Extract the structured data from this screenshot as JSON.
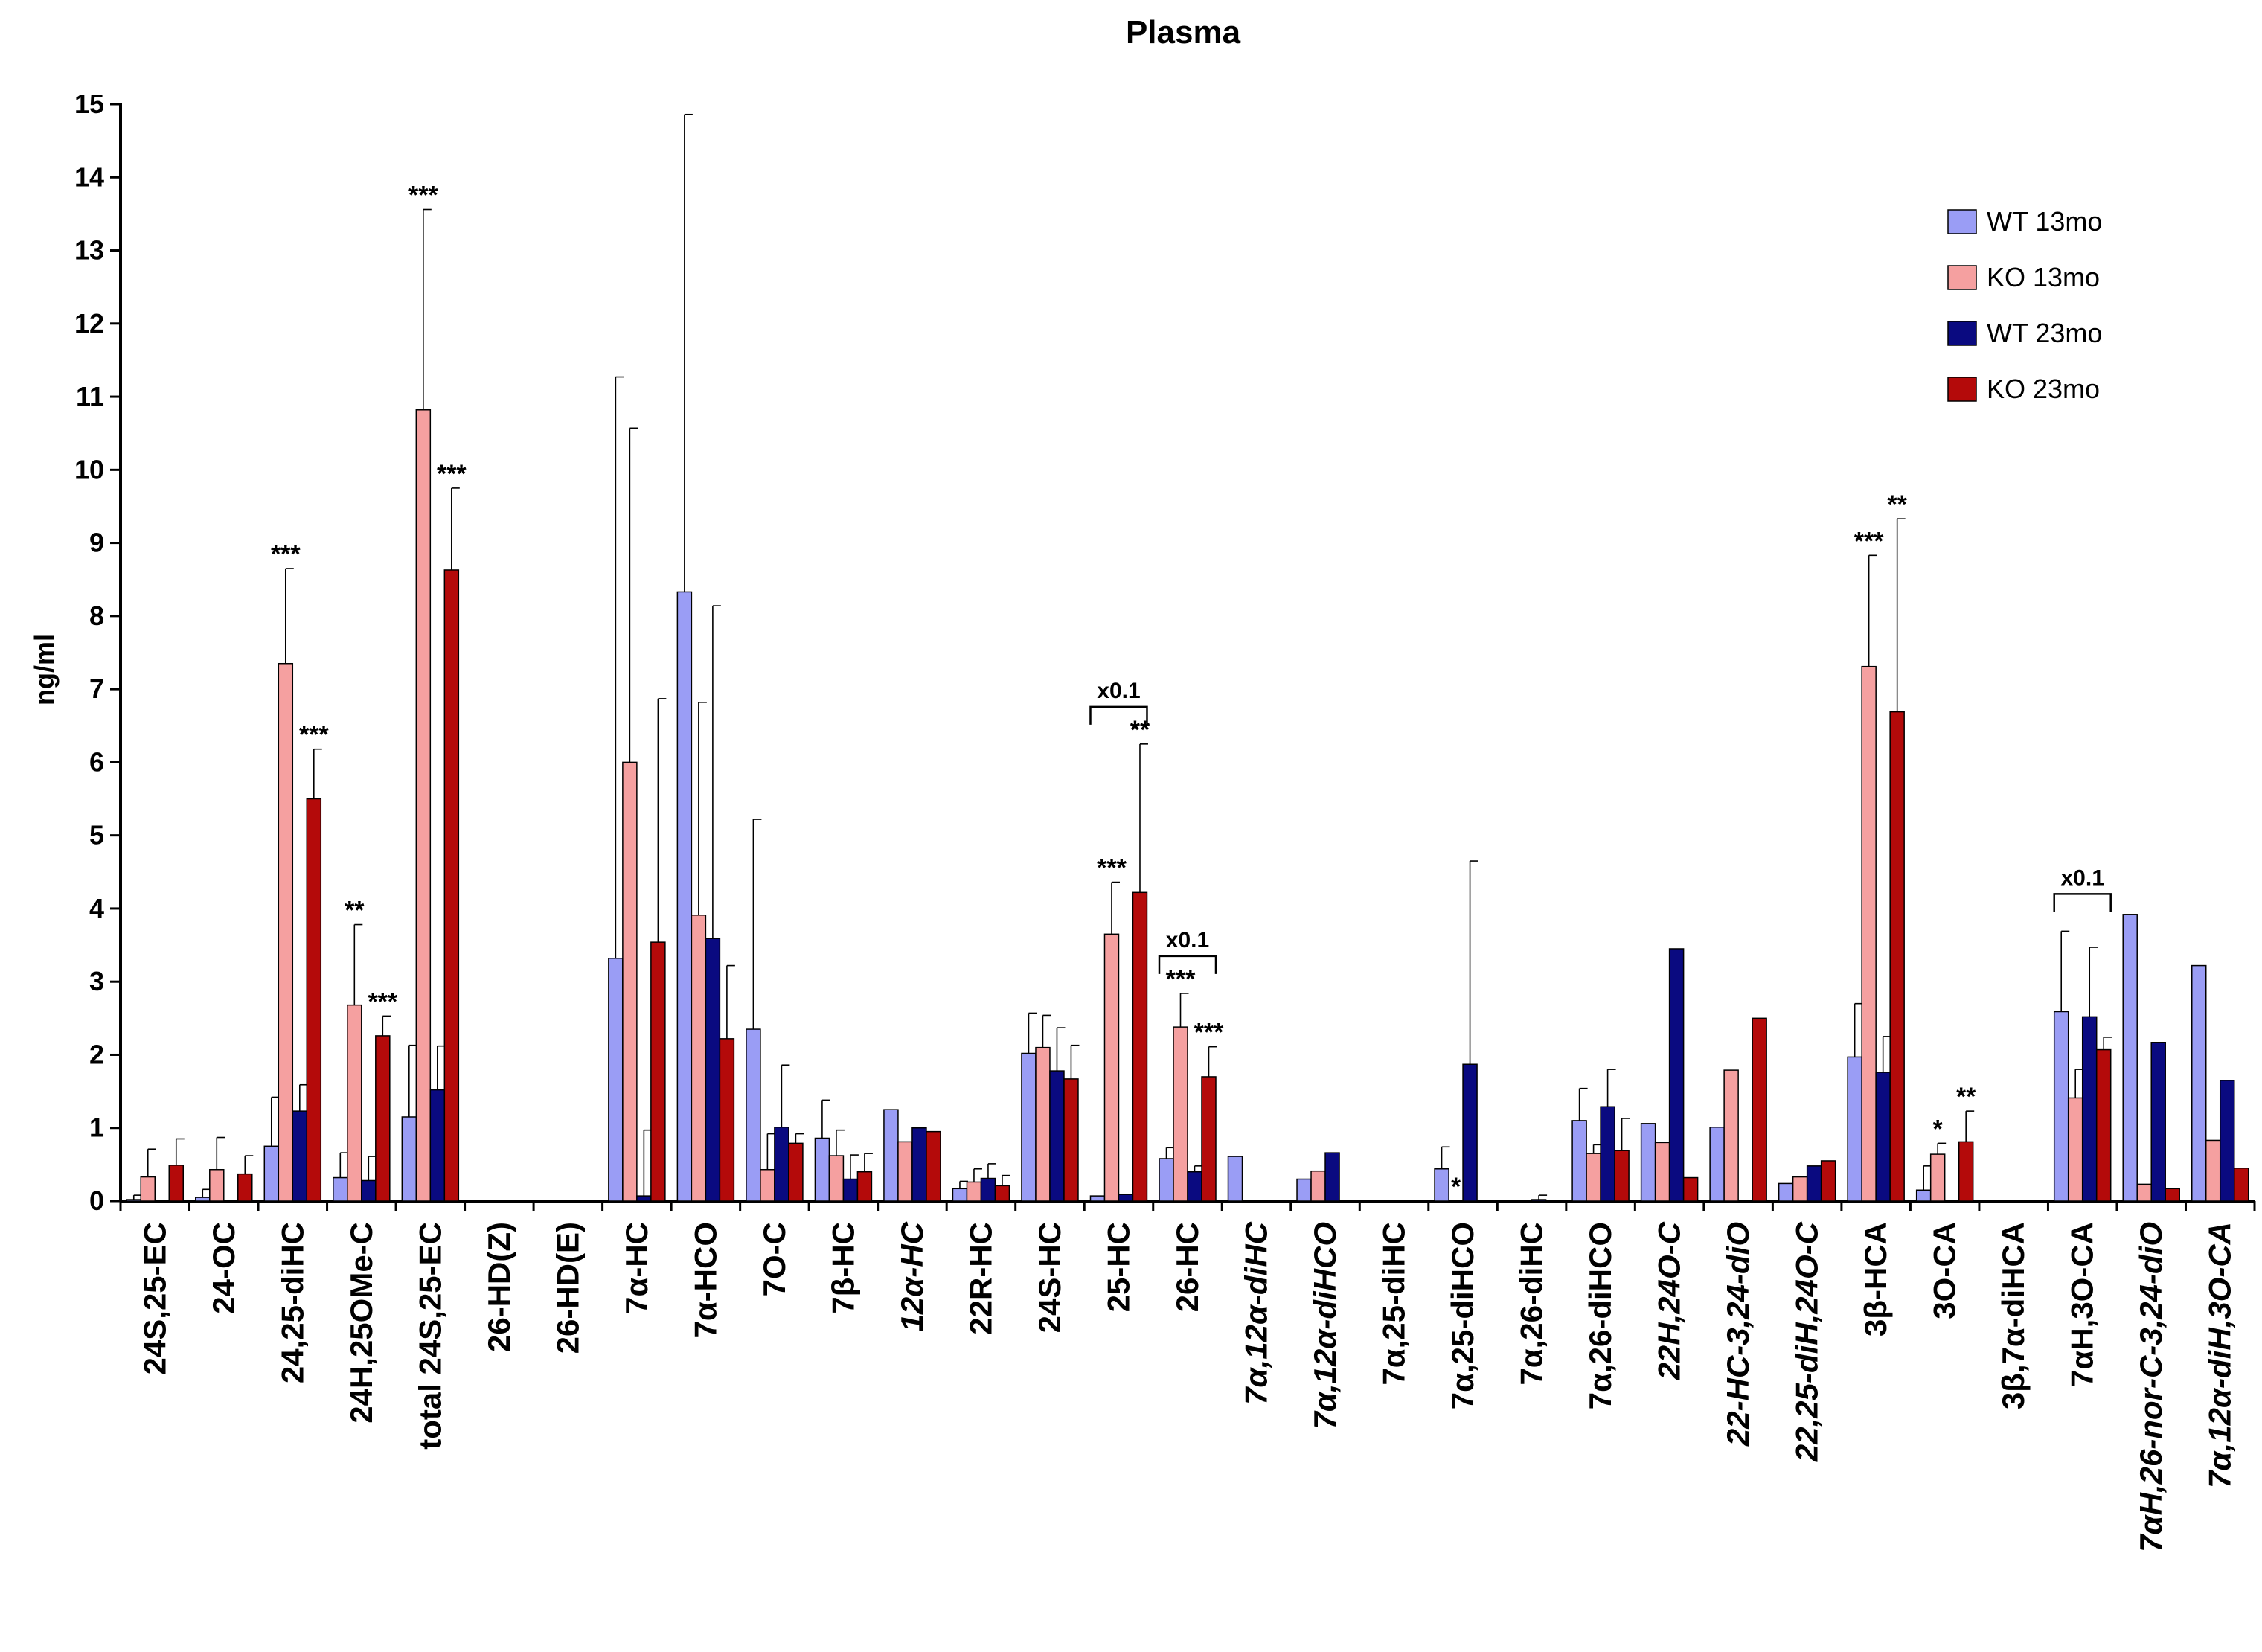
{
  "chart_data": {
    "type": "bar",
    "title": "Plasma",
    "ylabel": "ng/ml",
    "xlabel": "",
    "ylim": [
      0,
      15
    ],
    "yticks": [
      0,
      1,
      2,
      3,
      4,
      5,
      6,
      7,
      8,
      9,
      10,
      11,
      12,
      13,
      14,
      15
    ],
    "legend_position": "top-right",
    "colors": {
      "WT 13mo": "#9a9df5",
      "KO 13mo": "#f5a0a0",
      "WT 23mo": "#0a0a80",
      "KO 23mo": "#b40a0a"
    },
    "categories": [
      {
        "label": "24S,25-EC",
        "italic": false
      },
      {
        "label": "24-OC",
        "italic": false
      },
      {
        "label": "24,25-diHC",
        "italic": false
      },
      {
        "label": "24H,25OMe-C",
        "italic": false
      },
      {
        "label": "total 24S,25-EC",
        "italic": false
      },
      {
        "label": "26-HD(Z)",
        "italic": false
      },
      {
        "label": "26-HD(E)",
        "italic": false
      },
      {
        "label": "7α-HC",
        "italic": false
      },
      {
        "label": "7α-HCO",
        "italic": false
      },
      {
        "label": "7O-C",
        "italic": false
      },
      {
        "label": "7β-HC",
        "italic": false
      },
      {
        "label": "12α-HC",
        "italic": true
      },
      {
        "label": "22R-HC",
        "italic": false
      },
      {
        "label": "24S-HC",
        "italic": false
      },
      {
        "label": "25-HC",
        "italic": false
      },
      {
        "label": "26-HC",
        "italic": false
      },
      {
        "label": "7α,12α-diHC",
        "italic": true
      },
      {
        "label": "7α,12α-diHCO",
        "italic": true
      },
      {
        "label": "7α,25-diHC",
        "italic": false
      },
      {
        "label": "7α,25-diHCO",
        "italic": false
      },
      {
        "label": "7α,26-diHC",
        "italic": false
      },
      {
        "label": "7α,26-diHCO",
        "italic": false
      },
      {
        "label": "22H,24O-C",
        "italic": true
      },
      {
        "label": "22-HC-3,24-diO",
        "italic": true
      },
      {
        "label": "22,25-diH,24O-C",
        "italic": true
      },
      {
        "label": "3β-HCA",
        "italic": false
      },
      {
        "label": "3O-CA",
        "italic": false
      },
      {
        "label": "3β,7α-diHCA",
        "italic": false
      },
      {
        "label": "7αH,3O-CA",
        "italic": false
      },
      {
        "label": "7αH,26-nor-C-3,24-diO",
        "italic": true
      },
      {
        "label": "7α,12α-diH,3O-CA",
        "italic": true
      }
    ],
    "series": [
      {
        "name": "WT 13mo",
        "values": [
          0.02,
          0.05,
          0.75,
          0.32,
          1.15,
          0,
          0,
          3.32,
          8.33,
          2.35,
          0.86,
          1.25,
          0.17,
          2.02,
          0.07,
          0.58,
          0.61,
          0.3,
          0,
          0.44,
          0,
          1.1,
          1.06,
          1.01,
          0.24,
          1.97,
          0.15,
          0,
          2.59,
          3.92,
          3.22
        ],
        "errors": [
          0.06,
          0.11,
          0.67,
          0.34,
          0.98,
          0,
          0,
          7.95,
          6.53,
          2.87,
          0.52,
          0,
          0.1,
          0.55,
          0,
          0.15,
          0,
          0,
          0,
          0.3,
          0,
          0.44,
          0,
          0,
          0,
          0.73,
          0.33,
          0,
          1.1,
          0,
          0
        ]
      },
      {
        "name": "KO 13mo",
        "values": [
          0.33,
          0.43,
          7.35,
          2.68,
          10.82,
          0,
          0,
          6.0,
          3.91,
          0.43,
          0.62,
          0.81,
          0.26,
          2.1,
          3.65,
          2.38,
          0,
          0.41,
          0,
          0,
          0,
          0.65,
          0.8,
          1.79,
          0.33,
          7.31,
          0.64,
          0,
          1.41,
          0.23,
          0.83
        ],
        "errors": [
          0.38,
          0.44,
          1.3,
          1.1,
          2.74,
          0,
          0,
          4.57,
          2.91,
          0.49,
          0.35,
          0,
          0.18,
          0.44,
          0.71,
          0.46,
          0,
          0,
          0,
          0,
          0,
          0.12,
          0,
          0,
          0,
          1.52,
          0.15,
          0,
          0.39,
          0,
          0
        ]
      },
      {
        "name": "WT 23mo",
        "values": [
          0,
          0,
          1.23,
          0.28,
          1.52,
          0,
          0,
          0.07,
          3.59,
          1.01,
          0.3,
          1.0,
          0.31,
          1.78,
          0.09,
          0.4,
          0,
          0.66,
          0,
          1.87,
          0.02,
          1.29,
          3.45,
          0,
          0.48,
          1.76,
          0,
          0,
          2.52,
          2.17,
          1.65
        ],
        "errors": [
          0,
          0,
          0.36,
          0.33,
          0.6,
          0,
          0,
          0.9,
          4.55,
          0.85,
          0.33,
          0,
          0.2,
          0.59,
          0,
          0.08,
          0,
          0,
          0,
          2.78,
          0.06,
          0.51,
          0,
          0,
          0,
          0.49,
          0,
          0,
          0.95,
          0,
          0
        ]
      },
      {
        "name": "KO 23mo",
        "values": [
          0.49,
          0.37,
          5.5,
          2.26,
          8.63,
          0,
          0,
          3.54,
          2.22,
          0.79,
          0.4,
          0.95,
          0.21,
          1.67,
          4.22,
          1.7,
          0,
          0,
          0,
          0,
          0,
          0.69,
          0.32,
          2.5,
          0.55,
          6.69,
          0.81,
          0,
          2.07,
          0.17,
          0.45
        ],
        "errors": [
          0.36,
          0.25,
          0.68,
          0.27,
          1.12,
          0,
          0,
          3.33,
          1.0,
          0.13,
          0.25,
          0,
          0.14,
          0.46,
          2.03,
          0.41,
          0,
          0,
          0,
          0,
          0,
          0.44,
          0,
          0,
          0,
          2.64,
          0.42,
          0,
          0.17,
          0,
          0
        ]
      }
    ],
    "significance": [
      {
        "category": 2,
        "series": 1,
        "text": "***"
      },
      {
        "category": 2,
        "series": 3,
        "text": "***"
      },
      {
        "category": 3,
        "series": 1,
        "text": "**"
      },
      {
        "category": 3,
        "series": 3,
        "text": "***"
      },
      {
        "category": 4,
        "series": 1,
        "text": "***"
      },
      {
        "category": 4,
        "series": 3,
        "text": "***"
      },
      {
        "category": 14,
        "series": 1,
        "text": "***"
      },
      {
        "category": 14,
        "series": 3,
        "text": "**"
      },
      {
        "category": 15,
        "series": 1,
        "text": "***"
      },
      {
        "category": 15,
        "series": 3,
        "text": "***"
      },
      {
        "category": 19,
        "series": 1,
        "text": "*"
      },
      {
        "category": 25,
        "series": 1,
        "text": "***"
      },
      {
        "category": 25,
        "series": 3,
        "text": "**"
      },
      {
        "category": 26,
        "series": 1,
        "text": "*"
      },
      {
        "category": 26,
        "series": 3,
        "text": "**"
      }
    ],
    "scale_annotations": [
      {
        "category": 14,
        "text": "x0.1"
      },
      {
        "category": 15,
        "text": "x0.1"
      },
      {
        "category": 28,
        "text": "x0.1"
      }
    ]
  }
}
